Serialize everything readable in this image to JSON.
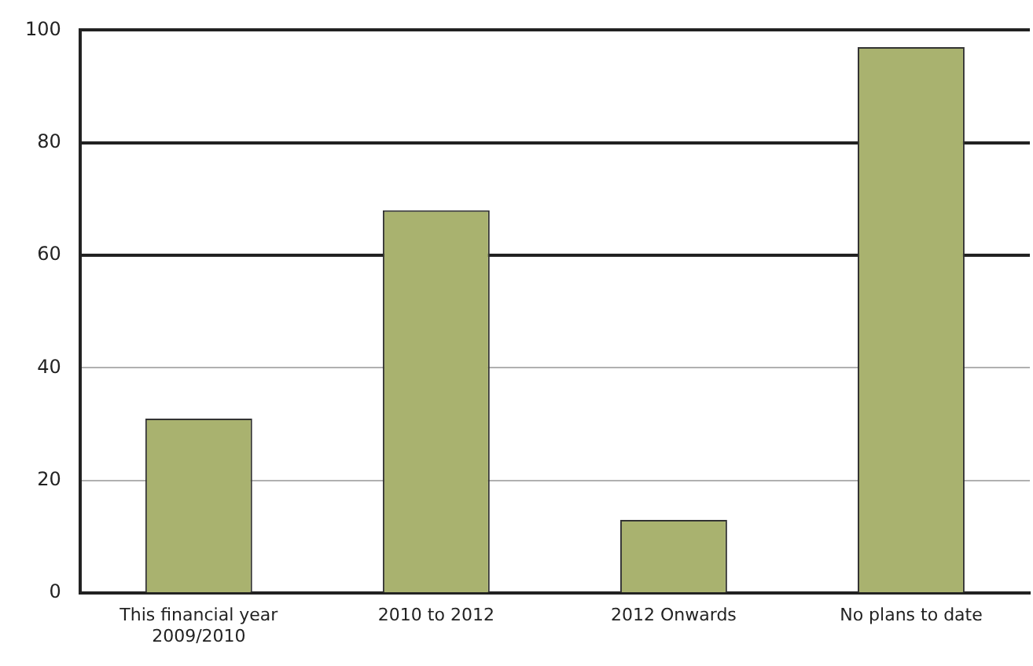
{
  "chart_data": {
    "type": "bar",
    "categories": [
      "This financial year 2009/2010",
      "2010 to 2012",
      "2012 Onwards",
      "No plans to date"
    ],
    "values": [
      31,
      68,
      13,
      97
    ],
    "color": "#a9b26f",
    "ylim": [
      0,
      100
    ],
    "yticks": [
      0,
      20,
      40,
      60,
      80,
      100
    ],
    "grid": "y",
    "legend": false
  }
}
